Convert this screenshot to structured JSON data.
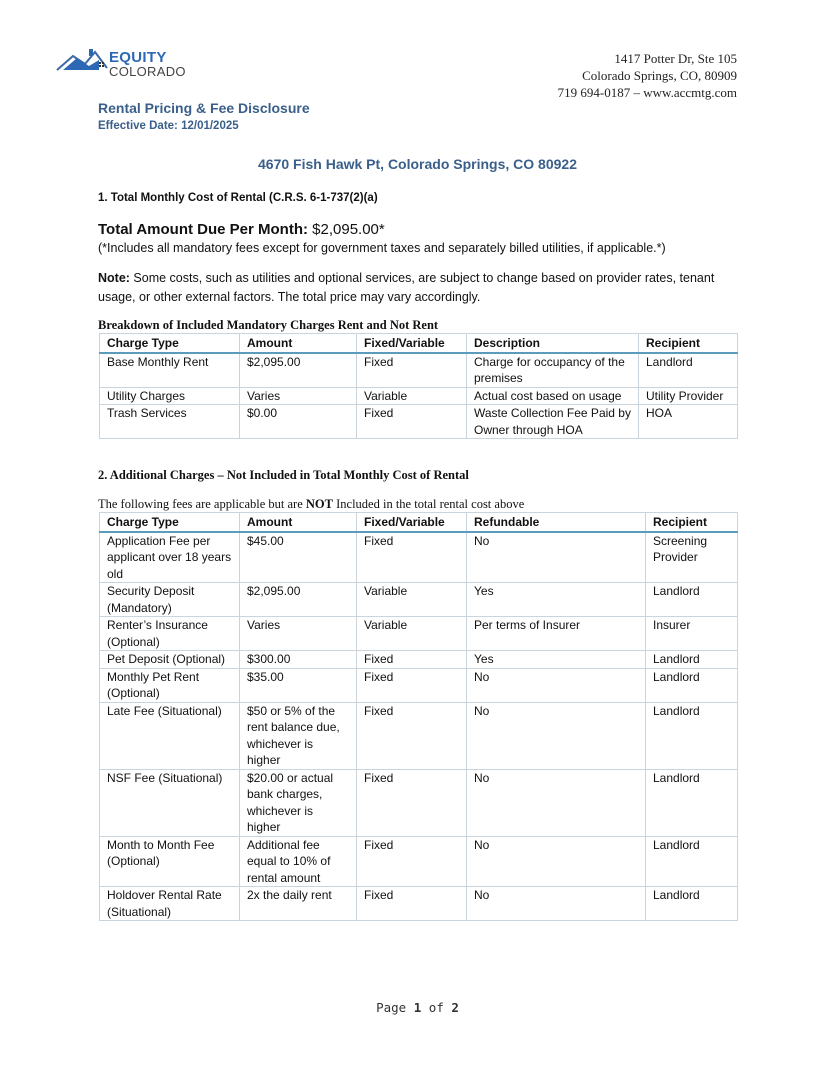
{
  "header": {
    "logo_line1": "EQUITY",
    "logo_line2": "COLORADO",
    "address1": "1417 Potter Dr, Ste 105",
    "address2": "Colorado Springs, CO, 80909",
    "contact": "719 694-0187 – www.accmtg.com"
  },
  "doc": {
    "title": "Rental Pricing & Fee Disclosure",
    "effective": "Effective Date: 12/01/2025",
    "property": "4670 Fish Hawk Pt, Colorado Springs, CO 80922",
    "sec1": "1.    Total Monthly Cost of Rental (C.R.S. 6-1-737(2)(a)",
    "total_label": "Total Amount Due Per Month:",
    "total_value": " $2,095.00*",
    "total_note": "(*Includes all mandatory fees except for government taxes and separately billed utilities, if applicable.*)",
    "note_label": "Note:",
    "note_text": " Some costs, such as utilities and optional services, are subject to change based on provider rates, tenant usage, or other external factors. The total price may vary accordingly.",
    "table1_caption": "Breakdown of Included Mandatory Charges Rent and Not Rent",
    "sec2": "2.    Additional Charges – Not Included in Total Monthly Cost of Rental",
    "table2_caption_a": "The following fees are applicable but are ",
    "table2_caption_b": "NOT",
    "table2_caption_c": " Included in the total rental cost above"
  },
  "table1": {
    "headers": [
      "Charge Type",
      "Amount",
      "Fixed/Variable",
      "Description",
      "Recipient"
    ],
    "rows": [
      [
        "Base Monthly Rent",
        "$2,095.00",
        "Fixed",
        "Charge for occupancy of the premises",
        "Landlord"
      ],
      [
        "Utility Charges",
        "Varies",
        "Variable",
        "Actual cost based on usage",
        "Utility Provider"
      ],
      [
        "Trash Services",
        "$0.00",
        "Fixed",
        "Waste Collection Fee Paid by Owner through HOA",
        "HOA"
      ]
    ]
  },
  "table2": {
    "headers": [
      "Charge Type",
      "Amount",
      "Fixed/Variable",
      "Refundable",
      "Recipient"
    ],
    "rows": [
      [
        "Application Fee per applicant over 18 years old",
        "$45.00",
        "Fixed",
        "No",
        "Screening Provider"
      ],
      [
        "Security Deposit (Mandatory)",
        "$2,095.00",
        "Variable",
        "Yes",
        "Landlord"
      ],
      [
        "Renter’s Insurance (Optional)",
        "Varies",
        "Variable",
        "Per terms of Insurer",
        "Insurer"
      ],
      [
        "Pet Deposit (Optional)",
        "$300.00",
        "Fixed",
        "Yes",
        "Landlord"
      ],
      [
        "Monthly Pet Rent (Optional)",
        "$35.00",
        "Fixed",
        "No",
        "Landlord"
      ],
      [
        "Late Fee (Situational)",
        "$50 or 5% of the rent balance due, whichever is higher",
        "Fixed",
        "No",
        "Landlord"
      ],
      [
        "NSF Fee (Situational)",
        "$20.00 or actual bank charges, whichever is higher",
        "Fixed",
        "No",
        "Landlord"
      ],
      [
        "Month to Month Fee (Optional)",
        "Additional fee equal to 10% of rental amount",
        "Fixed",
        "No",
        "Landlord"
      ],
      [
        "Holdover Rental Rate (Situational)",
        "2x the daily rent",
        "Fixed",
        "No",
        "Landlord"
      ]
    ]
  },
  "footer": {
    "page_word": "Page ",
    "page": "1",
    "of": " of ",
    "total": "2"
  }
}
